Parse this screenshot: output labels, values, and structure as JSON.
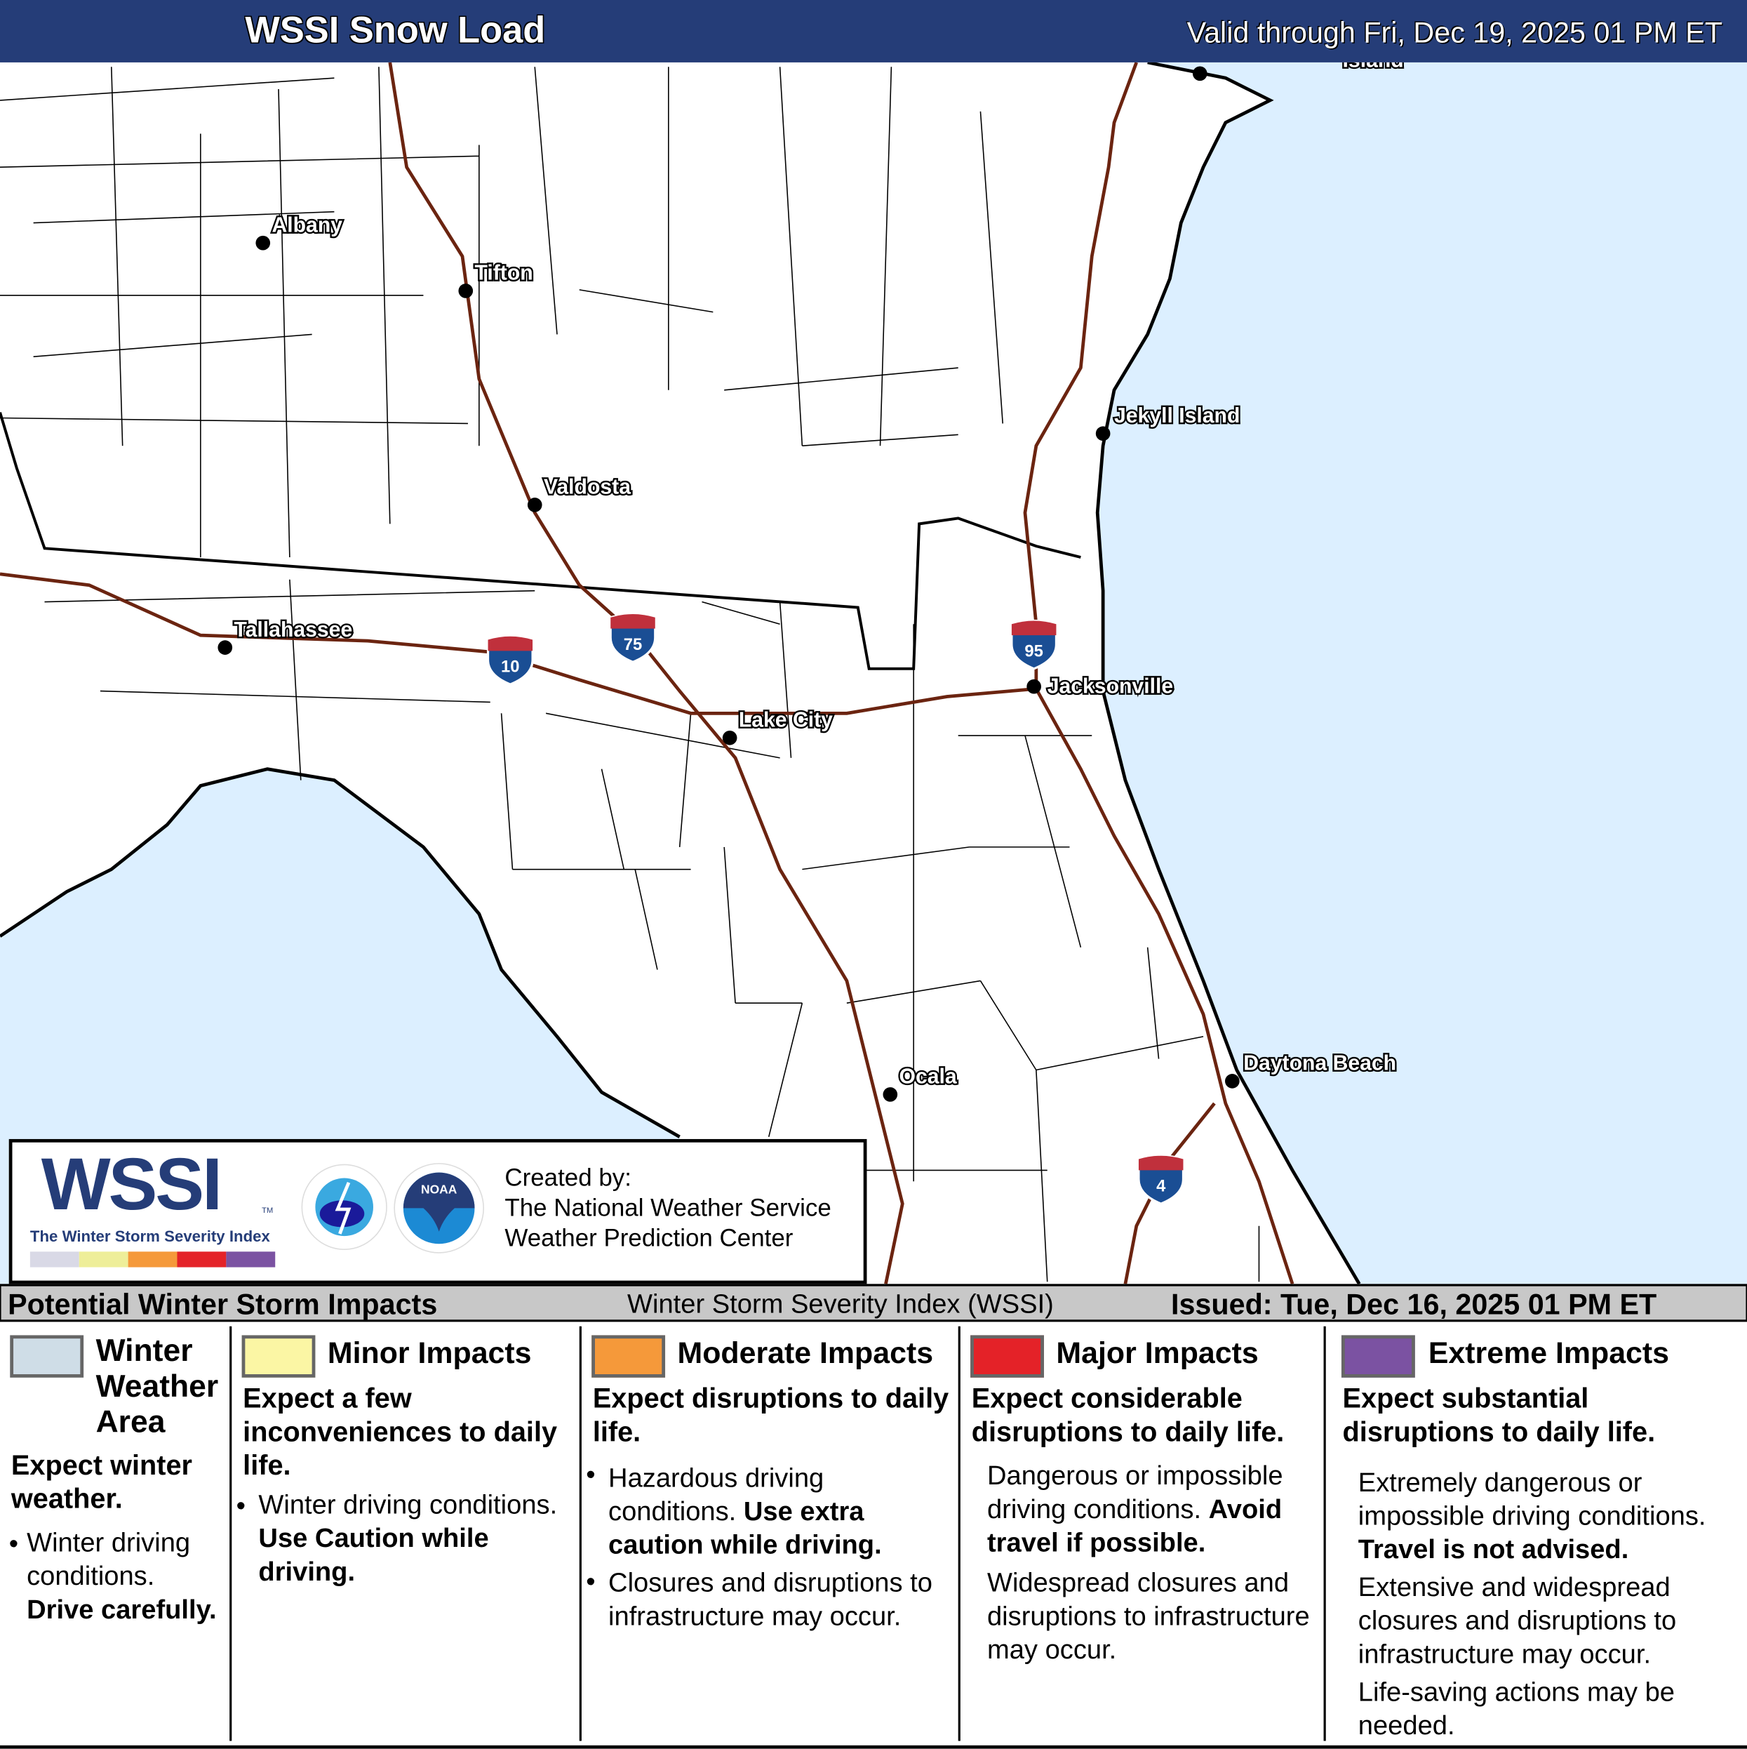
{
  "header": {
    "title": "WSSI Snow Load",
    "valid": "Valid through Fri, Dec 19, 2025 01 PM ET"
  },
  "map": {
    "colors": {
      "land": "#ffffff",
      "water": "#dcefff",
      "interstate": "#6b2410",
      "county": "#000000",
      "shield_blue": "#1a4e94",
      "shield_red": "#c0303c"
    },
    "cities": [
      {
        "name": "Albany"
      },
      {
        "name": "Tifton"
      },
      {
        "name": "Valdosta"
      },
      {
        "name": "Tallahassee"
      },
      {
        "name": "Lake City"
      },
      {
        "name": "Jacksonville"
      },
      {
        "name": "Jekyll Island"
      },
      {
        "name": "Ocala"
      },
      {
        "name": "Daytona Beach"
      },
      {
        "name": "Island"
      }
    ],
    "interstates": [
      {
        "number": "10"
      },
      {
        "number": "75"
      },
      {
        "number": "95"
      },
      {
        "number": "4"
      }
    ]
  },
  "logo": {
    "wssi": "WSSI",
    "tm": "TM",
    "subtitle": "The Winter Storm Severity Index",
    "nws_text": "NATIONAL WEATHER SERVICE",
    "noaa_text": "NOAA",
    "created_by": "Created by:",
    "org1": "The National Weather Service",
    "org2": "Weather Prediction Center",
    "bar_colors": [
      "#d9d9e6",
      "#eeee99",
      "#f5993a",
      "#e42228",
      "#7b52a2"
    ]
  },
  "legend": {
    "title": "Potential Winter Storm Impacts",
    "index": "Winter Storm Severity Index (WSSI)",
    "issued": "Issued: Tue, Dec 16, 2025 01 PM ET",
    "categories": [
      {
        "name": "Winter Weather Area",
        "color": "#cfdde7",
        "expect": "Expect winter weather.",
        "bullet": "Winter driving conditions.",
        "bold": "Drive carefully."
      },
      {
        "name": "Minor Impacts",
        "color": "#fbf6a4",
        "expect": "Expect a few inconveniences to daily life.",
        "bullet": "Winter driving conditions.",
        "bold": "Use Caution while driving."
      },
      {
        "name": "Moderate Impacts",
        "color": "#f5993a",
        "expect": "Expect disruptions to daily life.",
        "bullet": "Hazardous driving conditions.",
        "bold": "Use extra caution while driving.",
        "bullet2": "Closures and disruptions to infrastructure may occur."
      },
      {
        "name": "Major Impacts",
        "color": "#e42228",
        "expect": "Expect considerable disruptions to daily life.",
        "p1": "Dangerous or impossible driving conditions.",
        "bold": "Avoid travel if possible.",
        "p2": "Widespread closures and disruptions to infrastructure may occur."
      },
      {
        "name": "Extreme Impacts",
        "color": "#7b52a2",
        "expect": "Expect substantial disruptions to daily life.",
        "p1": "Extremely dangerous or impossible driving conditions.",
        "bold": "Travel is not advised.",
        "p2": "Extensive and widespread closures and disruptions to infrastructure may occur.",
        "p3": "Life-saving actions may be needed."
      }
    ]
  }
}
